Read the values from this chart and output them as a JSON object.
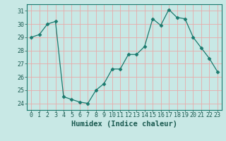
{
  "x": [
    0,
    1,
    2,
    3,
    4,
    5,
    6,
    7,
    8,
    9,
    10,
    11,
    12,
    13,
    14,
    15,
    16,
    17,
    18,
    19,
    20,
    21,
    22,
    23
  ],
  "y": [
    29.0,
    29.2,
    30.0,
    30.2,
    24.5,
    24.3,
    24.1,
    24.0,
    25.0,
    25.5,
    26.6,
    26.6,
    27.7,
    27.7,
    28.3,
    30.4,
    29.9,
    31.1,
    30.5,
    30.4,
    29.0,
    28.2,
    27.4,
    26.4
  ],
  "xlabel": "Humidex (Indice chaleur)",
  "ylim": [
    23.5,
    31.5
  ],
  "xlim": [
    -0.5,
    23.5
  ],
  "yticks": [
    24,
    25,
    26,
    27,
    28,
    29,
    30,
    31
  ],
  "xticks": [
    0,
    1,
    2,
    3,
    4,
    5,
    6,
    7,
    8,
    9,
    10,
    11,
    12,
    13,
    14,
    15,
    16,
    17,
    18,
    19,
    20,
    21,
    22,
    23
  ],
  "line_color": "#1a7a6e",
  "marker": "D",
  "marker_size": 2.5,
  "bg_color": "#c8e8e5",
  "plot_bg_color": "#c8e8e5",
  "grid_color": "#e8aaaa",
  "tick_color": "#1a5a50",
  "label_color": "#1a5a50",
  "font_size_tick": 6,
  "font_size_xlabel": 7.5
}
